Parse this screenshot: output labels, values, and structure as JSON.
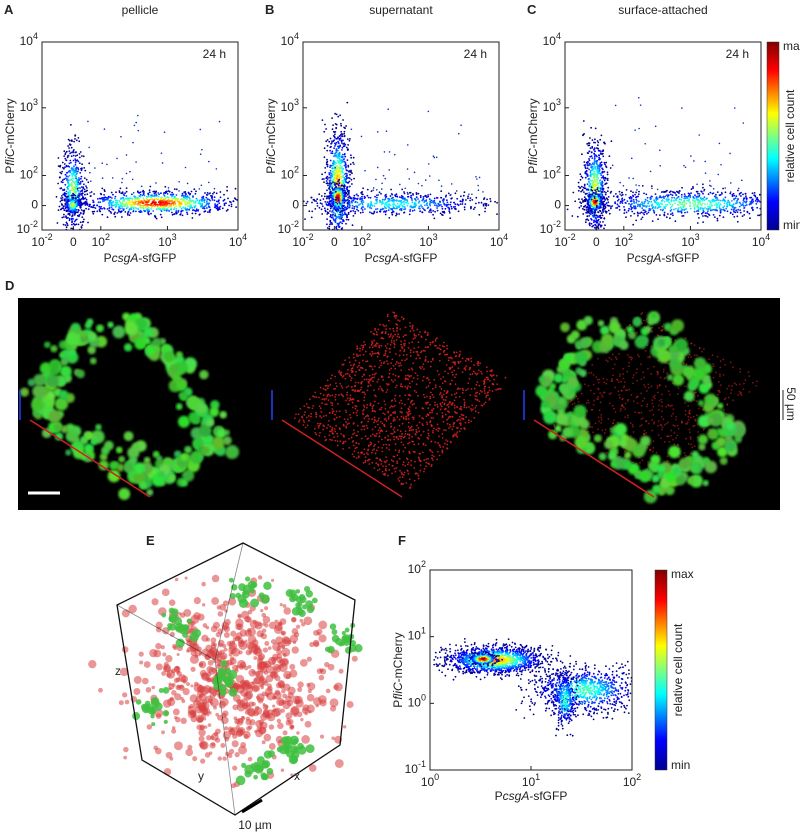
{
  "panels": [
    {
      "letter": "A",
      "title": "pellicle",
      "time": "24 h"
    },
    {
      "letter": "B",
      "title": "supernatant",
      "time": "24 h"
    },
    {
      "letter": "C",
      "title": "surface-attached",
      "time": "24 h"
    }
  ],
  "flow_axes": {
    "xlabel": {
      "prefix": "P",
      "gene": "csgA",
      "suffix": "-sfGFP"
    },
    "ylabel": {
      "prefix": "P",
      "gene": "fliC",
      "suffix": "-mCherry"
    },
    "ticks": [
      {
        "base": "10",
        "exp": "-2"
      },
      {
        "base": "0"
      },
      {
        "base": "10",
        "exp": "2"
      },
      {
        "base": "10",
        "exp": "3"
      },
      {
        "base": "10",
        "exp": "4"
      }
    ]
  },
  "colorbar": {
    "max": "max",
    "min": "min",
    "label": "relative cell count"
  },
  "panel_d": {
    "letter": "D",
    "scale": "50 µm"
  },
  "panel_e": {
    "letter": "E",
    "z": "z",
    "y": "y",
    "x": "x",
    "scale": "10 µm"
  },
  "panel_f": {
    "letter": "F",
    "xlabel": {
      "prefix": "P",
      "gene": "csgA",
      "suffix": "-sfGFP"
    },
    "ylabel": {
      "prefix": "P",
      "gene": "fliC",
      "suffix": "-mCherry"
    },
    "xticks": [
      {
        "base": "10",
        "exp": "0"
      },
      {
        "base": "10",
        "exp": "1"
      },
      {
        "base": "10",
        "exp": "2"
      }
    ],
    "yticks": [
      {
        "base": "10",
        "exp": "-1"
      },
      {
        "base": "10",
        "exp": "0"
      },
      {
        "base": "10",
        "exp": "1"
      },
      {
        "base": "10",
        "exp": "2"
      }
    ]
  }
}
